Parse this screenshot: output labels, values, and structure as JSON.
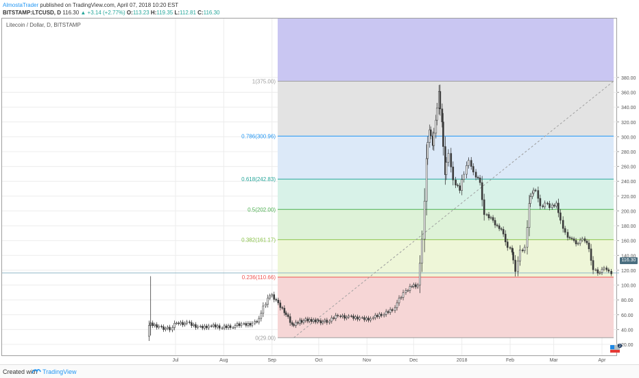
{
  "header": {
    "author": "AlmostaTrader",
    "published_text": "published on TradingView.com, April 07, 2018 10:20 EST",
    "symbol": "BITSTAMP:LTCUSD, D",
    "last": "116.30",
    "change": "+3.14 (+2.77%)",
    "open_label": "O:",
    "open": "113.23",
    "high_label": "H:",
    "high": "119.35",
    "low_label": "L:",
    "low": "112.81",
    "close_label": "C:",
    "close": "116.30"
  },
  "chart_title": "Litecoin / Dollar, D, BITSTAMP",
  "price_tag": "116.30",
  "footer": {
    "created_with": "Created with",
    "brand": "TradingView"
  },
  "colors": {
    "up": "#26a69a",
    "down": "#ef5350",
    "candle": "#3a3a3a",
    "fib_1": "#9e9e9e",
    "fib_0786": "#2196f3",
    "fib_0618": "#26a69a",
    "fib_05": "#4caf50",
    "fib_0382": "#8bc34a",
    "fib_0236": "#ef5350",
    "fib_0": "#9e9e9e"
  },
  "chart_data": {
    "type": "candlestick",
    "title": "Litecoin / Dollar, D, BITSTAMP",
    "y_axis_position": "right",
    "ylim": [
      12,
      392
    ],
    "y_ticks": [
      "20.00",
      "40.00",
      "60.00",
      "80.00",
      "100.00",
      "120.00",
      "140.00",
      "160.00",
      "180.00",
      "200.00",
      "220.00",
      "240.00",
      "260.00",
      "280.00",
      "300.00",
      "320.00",
      "340.00",
      "360.00",
      "380.00"
    ],
    "x_ticks": [
      "Jul",
      "Aug",
      "Sep",
      "Oct",
      "Nov",
      "Dec",
      "2018",
      "Feb",
      "Mar",
      "Apr"
    ],
    "fibonacci": [
      {
        "label": "1(375.00)",
        "level": 375.0
      },
      {
        "label": "0.786(300.96)",
        "level": 300.96
      },
      {
        "label": "0.618(242.83)",
        "level": 242.83
      },
      {
        "label": "0.5(202.00)",
        "level": 202.0
      },
      {
        "label": "0.382(161.17)",
        "level": 161.17
      },
      {
        "label": "0.236(110.66)",
        "level": 110.66
      },
      {
        "label": "0(29.00)",
        "level": 29.0
      }
    ],
    "trendline": {
      "from": {
        "date": "Sep 15 2017",
        "price": 29.0
      },
      "to": {
        "date": "Apr 07 2018",
        "price": 375.0
      }
    },
    "last_price": 116.3,
    "series_close": [
      {
        "date": "Jun 14 2017",
        "close": 31
      },
      {
        "date": "Jun 15 2017",
        "close": 48
      },
      {
        "date": "Jun 22 2017",
        "close": 44
      },
      {
        "date": "Jun 29 2017",
        "close": 40
      },
      {
        "date": "Jul 03 2017",
        "close": 50
      },
      {
        "date": "Jul 10 2017",
        "close": 48
      },
      {
        "date": "Jul 17 2017",
        "close": 43
      },
      {
        "date": "Jul 24 2017",
        "close": 45
      },
      {
        "date": "Jul 31 2017",
        "close": 43
      },
      {
        "date": "Aug 07 2017",
        "close": 45
      },
      {
        "date": "Aug 14 2017",
        "close": 46
      },
      {
        "date": "Aug 21 2017",
        "close": 48
      },
      {
        "date": "Aug 25 2017",
        "close": 55
      },
      {
        "date": "Aug 28 2017",
        "close": 70
      },
      {
        "date": "Sep 01 2017",
        "close": 88
      },
      {
        "date": "Sep 05 2017",
        "close": 78
      },
      {
        "date": "Sep 10 2017",
        "close": 65
      },
      {
        "date": "Sep 15 2017",
        "close": 45
      },
      {
        "date": "Sep 20 2017",
        "close": 52
      },
      {
        "date": "Sep 25 2017",
        "close": 52
      },
      {
        "date": "Oct 01 2017",
        "close": 52
      },
      {
        "date": "Oct 08 2017",
        "close": 50
      },
      {
        "date": "Oct 15 2017",
        "close": 60
      },
      {
        "date": "Oct 22 2017",
        "close": 56
      },
      {
        "date": "Oct 29 2017",
        "close": 55
      },
      {
        "date": "Nov 05 2017",
        "close": 55
      },
      {
        "date": "Nov 12 2017",
        "close": 60
      },
      {
        "date": "Nov 19 2017",
        "close": 68
      },
      {
        "date": "Nov 26 2017",
        "close": 88
      },
      {
        "date": "Dec 01 2017",
        "close": 100
      },
      {
        "date": "Dec 05 2017",
        "close": 100
      },
      {
        "date": "Dec 08 2017",
        "close": 160
      },
      {
        "date": "Dec 10 2017",
        "close": 270
      },
      {
        "date": "Dec 12 2017",
        "close": 310
      },
      {
        "date": "Dec 14 2017",
        "close": 290
      },
      {
        "date": "Dec 16 2017",
        "close": 320
      },
      {
        "date": "Dec 18 2017",
        "close": 360
      },
      {
        "date": "Dec 20 2017",
        "close": 320
      },
      {
        "date": "Dec 22 2017",
        "close": 250
      },
      {
        "date": "Dec 25 2017",
        "close": 280
      },
      {
        "date": "Dec 28 2017",
        "close": 240
      },
      {
        "date": "Jan 01 2018",
        "close": 230
      },
      {
        "date": "Jan 04 2018",
        "close": 250
      },
      {
        "date": "Jan 07 2018",
        "close": 270
      },
      {
        "date": "Jan 10 2018",
        "close": 250
      },
      {
        "date": "Jan 14 2018",
        "close": 240
      },
      {
        "date": "Jan 17 2018",
        "close": 195
      },
      {
        "date": "Jan 21 2018",
        "close": 190
      },
      {
        "date": "Jan 25 2018",
        "close": 180
      },
      {
        "date": "Jan 29 2018",
        "close": 170
      },
      {
        "date": "Feb 01 2018",
        "close": 150
      },
      {
        "date": "Feb 03 2018",
        "close": 145
      },
      {
        "date": "Feb 06 2018",
        "close": 120
      },
      {
        "date": "Feb 09 2018",
        "close": 145
      },
      {
        "date": "Feb 12 2018",
        "close": 150
      },
      {
        "date": "Feb 14 2018",
        "close": 210
      },
      {
        "date": "Feb 16 2018",
        "close": 225
      },
      {
        "date": "Feb 19 2018",
        "close": 230
      },
      {
        "date": "Feb 22 2018",
        "close": 205
      },
      {
        "date": "Feb 25 2018",
        "close": 210
      },
      {
        "date": "Feb 28 2018",
        "close": 205
      },
      {
        "date": "Mar 04 2018",
        "close": 210
      },
      {
        "date": "Mar 07 2018",
        "close": 185
      },
      {
        "date": "Mar 10 2018",
        "close": 170
      },
      {
        "date": "Mar 14 2018",
        "close": 160
      },
      {
        "date": "Mar 18 2018",
        "close": 155
      },
      {
        "date": "Mar 21 2018",
        "close": 165
      },
      {
        "date": "Mar 25 2018",
        "close": 150
      },
      {
        "date": "Mar 28 2018",
        "close": 120
      },
      {
        "date": "Apr 01 2018",
        "close": 115
      },
      {
        "date": "Apr 04 2018",
        "close": 125
      },
      {
        "date": "Apr 07 2018",
        "close": 116.3
      }
    ]
  }
}
